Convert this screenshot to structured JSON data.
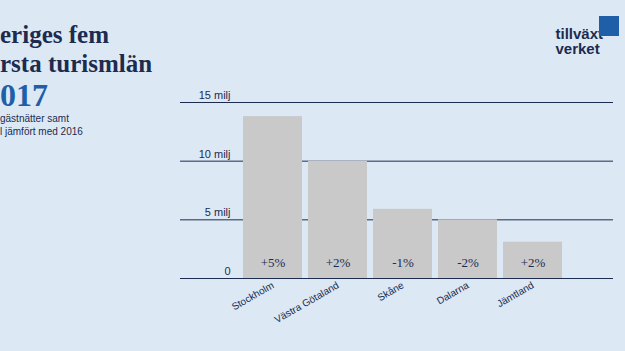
{
  "chart_data": {
    "type": "bar",
    "title": [
      "eriges fem",
      "rsta turismlän",
      "017"
    ],
    "subtitle": [
      "gästnätter samt",
      "l jämfört med 2016"
    ],
    "logo": [
      "tillväxt",
      "verket"
    ],
    "categories": [
      "Stockholm",
      "Västra Götaland",
      "Skåne",
      "Dalarna",
      "Jämtland"
    ],
    "values": [
      13.8,
      10,
      5.9,
      5,
      3.1
    ],
    "change_labels": [
      "+5%",
      "+2%",
      "-1%",
      "-2%",
      "+2%"
    ],
    "color": "#c9c9c9",
    "ylim": [
      0,
      15
    ],
    "yticks": [
      0,
      {
        "value": 5,
        "label": "5 milj"
      },
      {
        "value": 10,
        "label": "10 milj"
      },
      {
        "value": 15,
        "label": "15 milj"
      }
    ],
    "grid": true
  }
}
